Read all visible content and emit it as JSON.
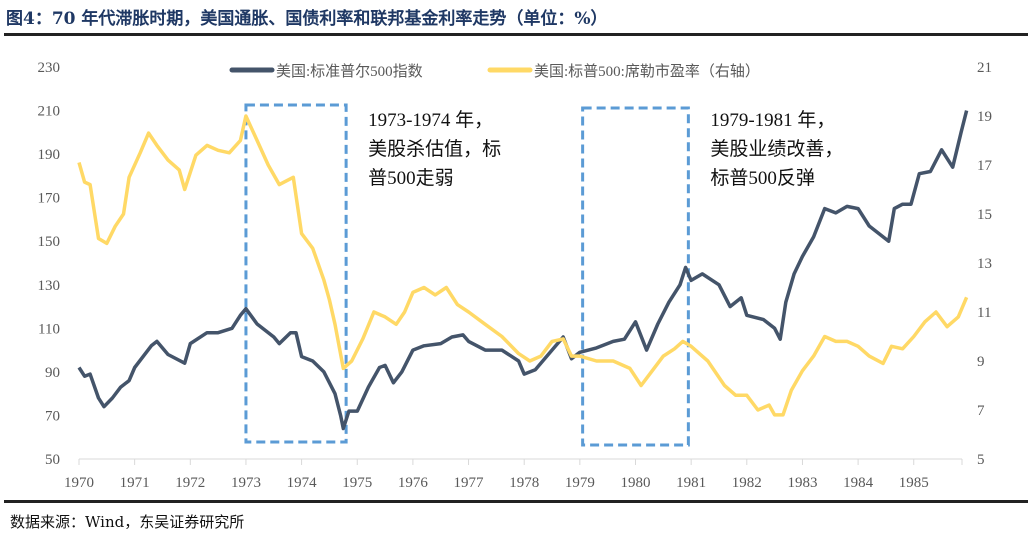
{
  "title": "图4：70 年代滞胀时期，美国通胀、国债利率和联邦基金利率走势（单位：%）",
  "source": "数据来源：Wind，东吴证券研究所",
  "chart_data": {
    "type": "line",
    "legend_position": "top-center",
    "grid": false,
    "x_ticks": [
      "1970",
      "1971",
      "1972",
      "1973",
      "1974",
      "1975",
      "1976",
      "1977",
      "1978",
      "1979",
      "1980",
      "1981",
      "1982",
      "1983",
      "1984",
      "1985"
    ],
    "xlim": [
      1970,
      1986
    ],
    "y_left": {
      "ylim": [
        50,
        230
      ],
      "ticks": [
        50,
        70,
        90,
        110,
        130,
        150,
        170,
        190,
        210,
        230
      ]
    },
    "y_right": {
      "ylim": [
        5,
        21
      ],
      "ticks": [
        5,
        7,
        9,
        11,
        13,
        15,
        17,
        19,
        21
      ]
    },
    "series": [
      {
        "name": "美国:标准普尔500指数",
        "axis": "left",
        "color": "#44546a",
        "x": [
          1970.0,
          1970.1,
          1970.2,
          1970.35,
          1970.45,
          1970.6,
          1970.75,
          1970.9,
          1971.0,
          1971.3,
          1971.4,
          1971.6,
          1971.9,
          1972.0,
          1972.3,
          1972.5,
          1972.75,
          1972.9,
          1973.0,
          1973.2,
          1973.5,
          1973.6,
          1973.8,
          1973.9,
          1974.0,
          1974.2,
          1974.4,
          1974.6,
          1974.7,
          1974.75,
          1974.85,
          1975.0,
          1975.2,
          1975.4,
          1975.5,
          1975.65,
          1975.8,
          1976.0,
          1976.2,
          1976.5,
          1976.7,
          1976.9,
          1977.0,
          1977.3,
          1977.6,
          1977.9,
          1978.0,
          1978.2,
          1978.5,
          1978.7,
          1978.85,
          1979.0,
          1979.3,
          1979.6,
          1979.8,
          1980.0,
          1980.2,
          1980.4,
          1980.6,
          1980.8,
          1980.9,
          1981.0,
          1981.2,
          1981.5,
          1981.7,
          1981.9,
          1982.0,
          1982.3,
          1982.5,
          1982.6,
          1982.7,
          1982.85,
          1983.0,
          1983.2,
          1983.4,
          1983.6,
          1983.8,
          1984.0,
          1984.2,
          1984.4,
          1984.55,
          1984.65,
          1984.8,
          1984.95,
          1985.1,
          1985.3,
          1985.5,
          1985.7,
          1985.85,
          1985.95
        ],
        "values": [
          92,
          88,
          89,
          78,
          74,
          78,
          83,
          86,
          92,
          102,
          104,
          98,
          94,
          103,
          108,
          108,
          110,
          116,
          119,
          112,
          106,
          103,
          108,
          108,
          97,
          95,
          90,
          80,
          70,
          64,
          72,
          72,
          83,
          92,
          93,
          85,
          90,
          100,
          102,
          103,
          106,
          107,
          104,
          100,
          100,
          95,
          89,
          91,
          100,
          106,
          96,
          99,
          101,
          104,
          105,
          113,
          100,
          112,
          122,
          130,
          138,
          132,
          135,
          130,
          120,
          124,
          116,
          114,
          110,
          105,
          122,
          135,
          143,
          152,
          165,
          163,
          166,
          165,
          157,
          153,
          150,
          165,
          167,
          167,
          181,
          182,
          192,
          184,
          200,
          210
        ]
      },
      {
        "name": "美国:标普500:席勒市盈率（右轴）",
        "axis": "right",
        "color": "#ffd966",
        "x": [
          1970.0,
          1970.1,
          1970.2,
          1970.35,
          1970.5,
          1970.65,
          1970.8,
          1970.9,
          1971.1,
          1971.25,
          1971.4,
          1971.6,
          1971.8,
          1971.9,
          1972.1,
          1972.3,
          1972.5,
          1972.7,
          1972.9,
          1973.0,
          1973.2,
          1973.4,
          1973.6,
          1973.85,
          1974.0,
          1974.2,
          1974.4,
          1974.5,
          1974.6,
          1974.75,
          1974.9,
          1975.1,
          1975.3,
          1975.5,
          1975.7,
          1975.85,
          1976.0,
          1976.2,
          1976.4,
          1976.6,
          1976.8,
          1977.0,
          1977.3,
          1977.6,
          1977.9,
          1978.1,
          1978.3,
          1978.5,
          1978.7,
          1978.85,
          1979.0,
          1979.3,
          1979.6,
          1979.9,
          1980.1,
          1980.3,
          1980.5,
          1980.7,
          1980.85,
          1981.0,
          1981.3,
          1981.6,
          1981.8,
          1982.0,
          1982.2,
          1982.4,
          1982.5,
          1982.65,
          1982.8,
          1983.0,
          1983.2,
          1983.4,
          1983.6,
          1983.8,
          1984.0,
          1984.2,
          1984.45,
          1984.6,
          1984.8,
          1985.0,
          1985.2,
          1985.4,
          1985.6,
          1985.8,
          1985.95
        ],
        "values": [
          17.1,
          16.3,
          16.2,
          14.0,
          13.8,
          14.5,
          15.0,
          16.5,
          17.5,
          18.3,
          17.8,
          17.2,
          16.8,
          16.0,
          17.4,
          17.8,
          17.6,
          17.5,
          18.0,
          19.0,
          18.0,
          17.0,
          16.2,
          16.5,
          14.2,
          13.6,
          12.3,
          11.5,
          10.5,
          8.7,
          9.0,
          9.9,
          11.0,
          10.8,
          10.5,
          11.0,
          11.8,
          12.0,
          11.7,
          12.0,
          11.3,
          11.0,
          10.5,
          10.0,
          9.3,
          9.0,
          9.2,
          9.8,
          9.9,
          9.2,
          9.2,
          9.0,
          9.0,
          8.7,
          8.0,
          8.6,
          9.2,
          9.5,
          9.8,
          9.6,
          9.0,
          8.0,
          7.6,
          7.6,
          7.0,
          7.2,
          6.8,
          6.8,
          7.8,
          8.6,
          9.2,
          10.0,
          9.8,
          9.8,
          9.6,
          9.2,
          8.9,
          9.6,
          9.5,
          10.0,
          10.6,
          11.0,
          10.4,
          10.8,
          11.6
        ]
      }
    ],
    "annotations": [
      {
        "range": [
          1973.0,
          1974.8
        ],
        "lines": [
          "1973-1974 年，",
          "美股杀估值，标",
          "普500走弱"
        ]
      },
      {
        "range": [
          1979.05,
          1980.95
        ],
        "lines": [
          "1979-1981 年，",
          "美股业绩改善，",
          "标普500反弹"
        ]
      }
    ],
    "accent_box_color": "#5b9bd5"
  }
}
